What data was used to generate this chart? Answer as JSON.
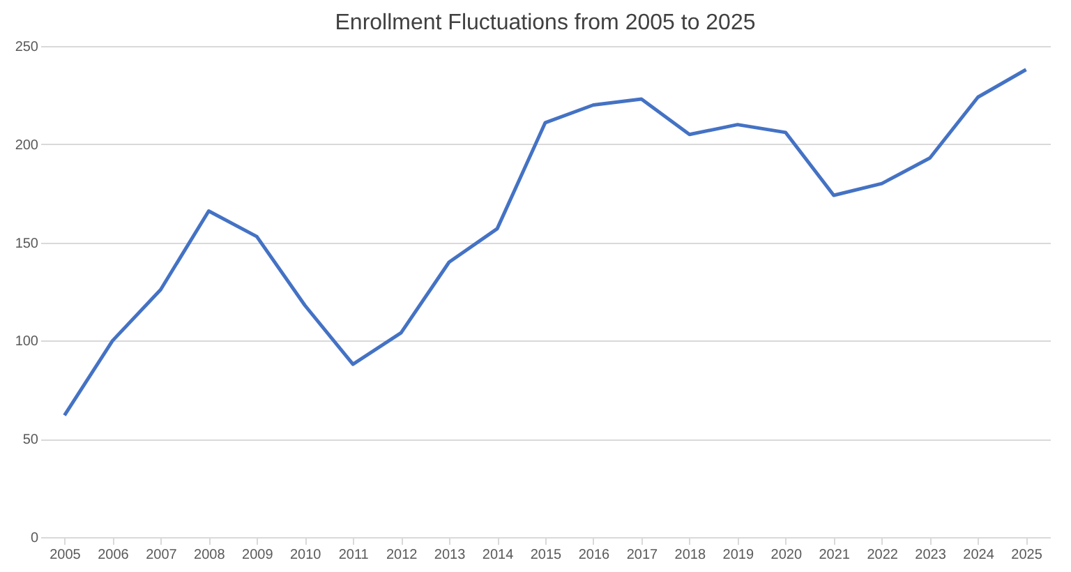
{
  "chart_data": {
    "type": "line",
    "title": "Enrollment Fluctuations from 2005 to 2025",
    "categories": [
      "2005",
      "2006",
      "2007",
      "2008",
      "2009",
      "2010",
      "2011",
      "2012",
      "2013",
      "2014",
      "2015",
      "2016",
      "2017",
      "2018",
      "2019",
      "2020",
      "2021",
      "2022",
      "2023",
      "2024",
      "2025"
    ],
    "series": [
      {
        "color": "#4472c4",
        "values": [
          62,
          100,
          126,
          166,
          153,
          118,
          88,
          104,
          140,
          157,
          211,
          220,
          223,
          205,
          210,
          206,
          174,
          180,
          193,
          224,
          238
        ]
      }
    ],
    "ylim": [
      0,
      250
    ],
    "yticks": [
      0,
      50,
      100,
      150,
      200,
      250
    ],
    "grid": "y",
    "marker": "none",
    "line_style": "solid"
  }
}
